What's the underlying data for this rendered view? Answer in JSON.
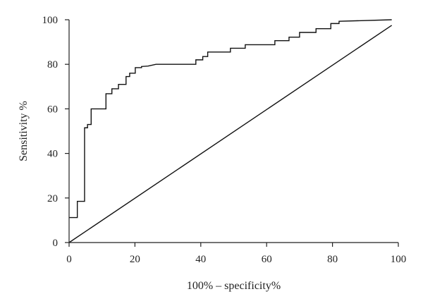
{
  "chart_data": {
    "type": "line",
    "title": "",
    "xlabel": "100% – specificity%",
    "ylabel": "Sensitivity %",
    "xlim": [
      0,
      100
    ],
    "ylim": [
      0,
      100
    ],
    "xticks": [
      0,
      20,
      40,
      60,
      80,
      100
    ],
    "yticks": [
      0,
      20,
      40,
      60,
      80,
      100
    ],
    "grid": false,
    "series": [
      {
        "name": "",
        "step": true,
        "x": [
          0,
          2.5,
          2.5,
          4.7,
          4.7,
          5.6,
          5.6,
          6.7,
          6.7,
          11.2,
          11.2,
          13,
          13,
          15,
          15,
          17.3,
          17.3,
          18.4,
          18.4,
          20.1,
          20.1,
          22,
          22,
          24,
          26.4,
          38.5,
          38.5,
          40.6,
          40.6,
          42.1,
          42.1,
          49,
          49,
          53.5,
          53.5,
          62.5,
          62.5,
          66.8,
          66.8,
          70,
          70,
          75,
          75,
          79.5,
          79.5,
          82,
          82,
          98
        ],
        "y": [
          11.2,
          11.2,
          18.5,
          18.5,
          51.5,
          51.5,
          53,
          53,
          60,
          60,
          66.8,
          66.8,
          69,
          69,
          71,
          71,
          74.5,
          74.5,
          76,
          76,
          78.5,
          78.5,
          79,
          79.2,
          80,
          80,
          82,
          82,
          83.5,
          83.5,
          85.5,
          85.5,
          87.2,
          87.2,
          88.8,
          88.8,
          90.6,
          90.6,
          92.2,
          92.2,
          94.3,
          94.3,
          96,
          96,
          98.3,
          98.3,
          99.3,
          100
        ]
      },
      {
        "name": "",
        "x": [
          0,
          98
        ],
        "y": [
          0,
          97.5
        ]
      }
    ]
  }
}
